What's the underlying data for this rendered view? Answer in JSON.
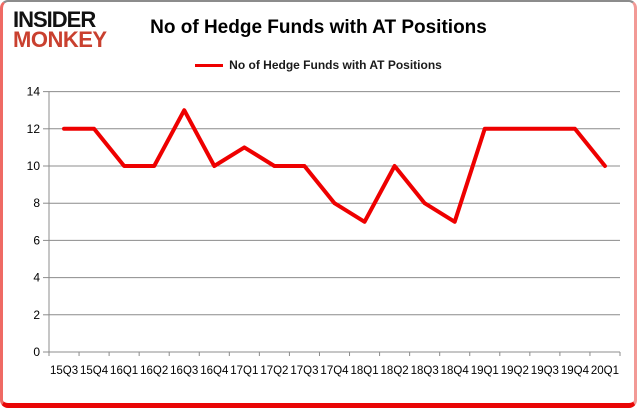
{
  "logo": {
    "line1": "INSIDER",
    "line2": "MONKEY"
  },
  "header": {
    "title": "No of Hedge Funds with AT Positions"
  },
  "legend": {
    "label": "No of Hedge Funds with AT Positions",
    "color": "#ee0000"
  },
  "chart_data": {
    "type": "line",
    "title": "No of Hedge Funds with AT Positions",
    "categories": [
      "15Q3",
      "15Q4",
      "16Q1",
      "16Q2",
      "16Q3",
      "16Q4",
      "17Q1",
      "17Q2",
      "17Q3",
      "17Q4",
      "18Q1",
      "18Q2",
      "18Q3",
      "18Q4",
      "19Q1",
      "19Q2",
      "19Q3",
      "19Q4",
      "20Q1"
    ],
    "series": [
      {
        "name": "No of Hedge Funds with AT Positions",
        "color": "#ee0000",
        "values": [
          12,
          12,
          10,
          10,
          13,
          10,
          11,
          10,
          10,
          8,
          7,
          10,
          8,
          7,
          12,
          12,
          12,
          12,
          10
        ]
      }
    ],
    "xlabel": "",
    "ylabel": "",
    "ylim": [
      0,
      14
    ],
    "ytick_step": 2,
    "grid": true,
    "legend_position": "top"
  },
  "colors": {
    "line": "#ee0000",
    "grid": "#8c8c8c",
    "axis": "#8c8c8c",
    "text": "#000000",
    "logo_black": "#111111",
    "logo_red": "#c9402f"
  }
}
